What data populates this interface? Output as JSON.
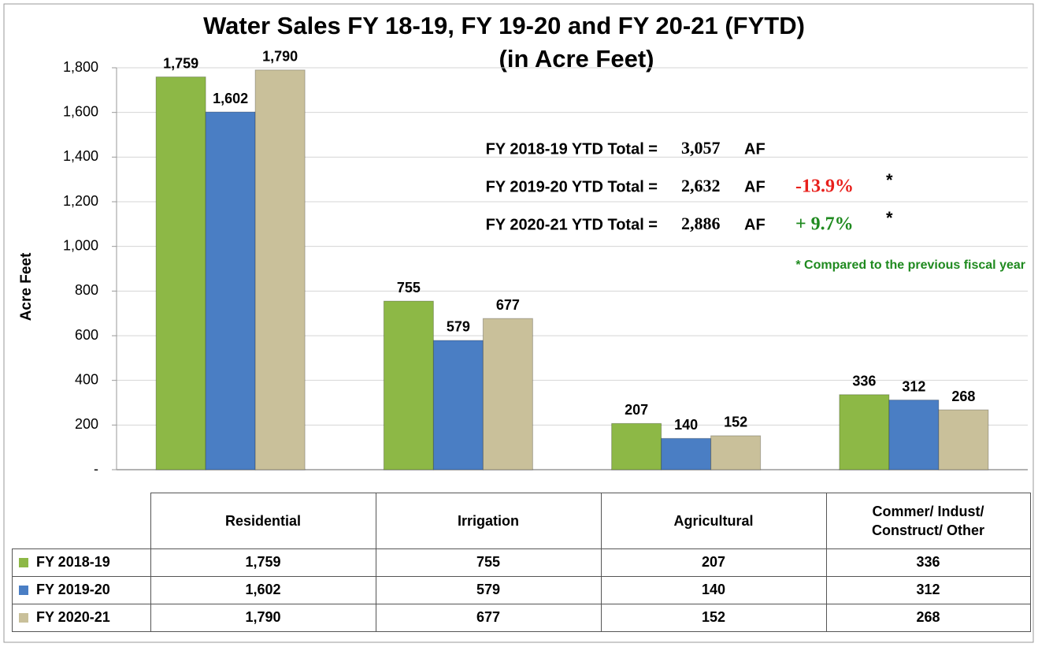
{
  "chart_data": {
    "type": "bar",
    "title": "Water Sales FY 18-19, FY 19-20 and FY 20-21 (FYTD)",
    "subtitle": "(in Acre Feet)",
    "y_label": "Acre Feet",
    "categories": [
      "Residential",
      "Irrigation",
      "Agricultural",
      "Commer/ Indust/ Construct/ Other"
    ],
    "series": [
      {
        "name": "FY 2018-19",
        "color": "#8db846",
        "values": [
          1759,
          755,
          207,
          336
        ],
        "value_labels": [
          "1,759",
          "755",
          "207",
          "336"
        ]
      },
      {
        "name": "FY 2019-20",
        "color": "#4a7ec4",
        "values": [
          1602,
          579,
          140,
          312
        ],
        "value_labels": [
          "1,602",
          "579",
          "140",
          "312"
        ]
      },
      {
        "name": "FY 2020-21",
        "color": "#c9c09a",
        "values": [
          1790,
          677,
          152,
          268
        ],
        "value_labels": [
          "1,790",
          "677",
          "152",
          "268"
        ]
      }
    ],
    "ylim": [
      0,
      1800
    ],
    "yticks": [
      {
        "value": 0,
        "label": "-"
      },
      200,
      400,
      600,
      800,
      {
        "value": 1000,
        "label": "1,000"
      },
      {
        "value": 1200,
        "label": "1,200"
      },
      {
        "value": 1400,
        "label": "1,400"
      },
      {
        "value": 1600,
        "label": "1,600"
      },
      {
        "value": 1800,
        "label": "1,800"
      }
    ],
    "grid": true,
    "annotations": [
      {
        "text": "FY 2018-19 YTD Total  =",
        "total": "3,057",
        "unit": "AF"
      },
      {
        "text": "FY 2019-20 YTD Total  =",
        "total": "2,632",
        "unit": "AF",
        "change": "-13.9%",
        "change_color": "#e8201c",
        "mark": "*"
      },
      {
        "text": "FY 2020-21 YTD Total  =",
        "total": "2,886",
        "unit": "AF",
        "change": "+ 9.7%",
        "change_color": "#1f8a1f",
        "mark": "*"
      }
    ],
    "note": "* Compared to the previous fiscal year",
    "note_color": "#1f8a1f"
  }
}
